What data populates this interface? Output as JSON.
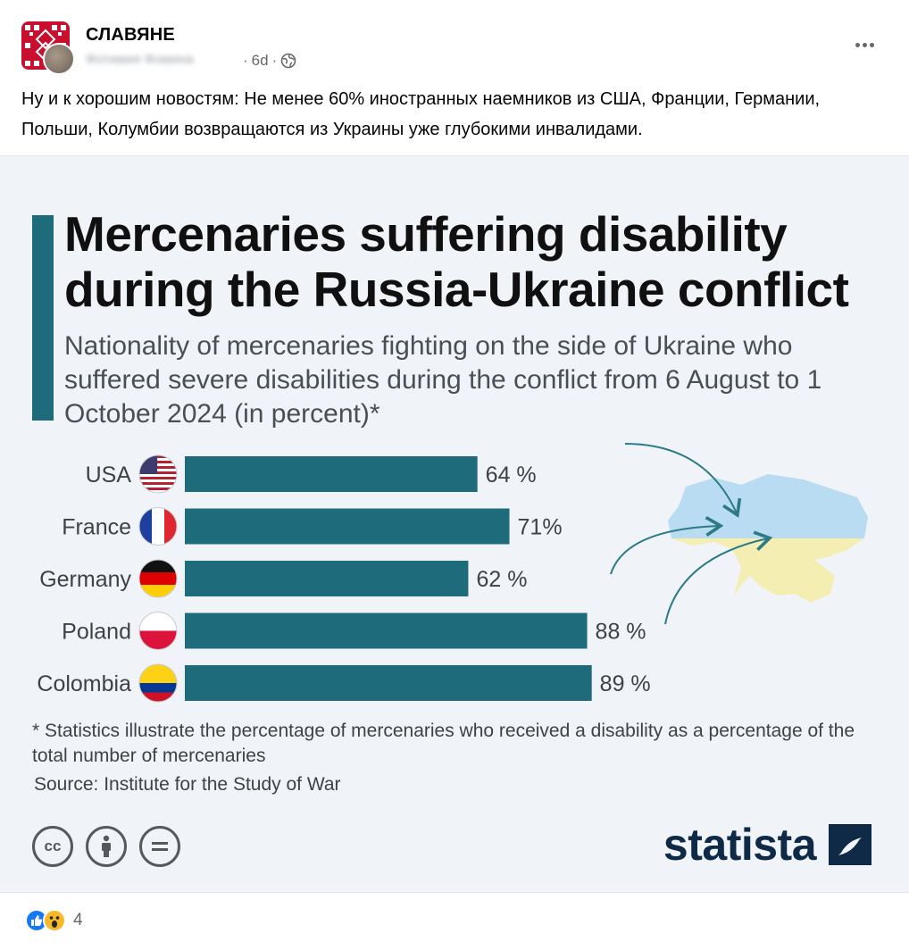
{
  "header": {
    "group_name": "СЛАВЯНЕ",
    "author_name": "Фотимия Фомина",
    "time": "6d",
    "separator": "·"
  },
  "post": {
    "text": "Ну и к хорошим новостям: Не менее 60% иностранных наемников из США, Франции, Германии, Польши, Колумбии возвращаются из Украины уже глубокими инвалидами."
  },
  "infographic": {
    "title": "Mercenaries suffering disability during the Russia-Ukraine conflict",
    "subtitle": "Nationality of mercenaries fighting on the side of Ukraine who suffered severe disabilities during the conflict from 6 August to 1 October 2024 (in percent)*",
    "footnote": "* Statistics illustrate the percentage of mercenaries who received a disability as a percentage of the total number of mercenaries",
    "source": "Source: Institute for the Study of War",
    "brand": "statista",
    "accent_color": "#1e6b7b"
  },
  "chart_data": {
    "type": "bar",
    "orientation": "horizontal",
    "categories": [
      "USA",
      "France",
      "Germany",
      "Poland",
      "Colombia"
    ],
    "values": [
      64,
      71,
      62,
      88,
      89
    ],
    "value_labels": [
      "64 %",
      "71%",
      "62 %",
      "88 %",
      "89 %"
    ],
    "flags": [
      "usa-flag",
      "france-flag",
      "germany-flag",
      "poland-flag",
      "colombia-flag"
    ],
    "bar_color": "#1e6b7b",
    "title": "Mercenaries suffering disability during the Russia-Ukraine conflict",
    "xlabel": "",
    "ylabel": "",
    "xlim": [
      0,
      100
    ]
  },
  "reactions": {
    "count": "4",
    "types": [
      "like-icon",
      "wow-icon"
    ]
  }
}
